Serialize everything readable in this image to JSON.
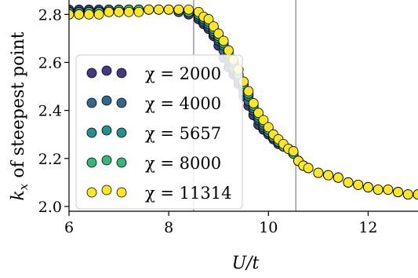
{
  "chart_data": {
    "type": "scatter",
    "xlabel": "U/t",
    "ylabel": "k_x of steepest point",
    "xlim": [
      6,
      13
    ],
    "ylim": [
      1.98,
      2.86
    ],
    "xticks": [
      "6",
      "8",
      "10",
      "12"
    ],
    "yticks": [
      "2.0",
      "2.2",
      "2.4",
      "2.6",
      "2.8"
    ],
    "vlines": [
      8.5,
      10.55
    ],
    "legend_placement": "center-left",
    "grid": false,
    "series": [
      {
        "name": "χ = 2000",
        "color": "#443983",
        "x": [
          6.0,
          6.2,
          6.4,
          6.6,
          6.8,
          7.0,
          7.2,
          7.4,
          7.6,
          7.8,
          8.0,
          8.2,
          8.4,
          8.6,
          8.7,
          8.8,
          8.9,
          9.0,
          9.1,
          9.2,
          9.3,
          9.4,
          9.5,
          9.6,
          9.7,
          9.8,
          9.9,
          10.0,
          10.1,
          10.2,
          10.3,
          10.4,
          10.5,
          10.6,
          10.7,
          10.8,
          11.0,
          11.2,
          11.4,
          11.6,
          11.8,
          12.0,
          12.2,
          12.4,
          12.6,
          12.8,
          13.0
        ],
        "y": [
          2.82,
          2.82,
          2.82,
          2.82,
          2.82,
          2.82,
          2.82,
          2.82,
          2.82,
          2.82,
          2.82,
          2.81,
          2.8,
          2.78,
          2.76,
          2.74,
          2.71,
          2.67,
          2.62,
          2.58,
          2.55,
          2.51,
          2.46,
          2.42,
          2.38,
          2.34,
          2.32,
          2.3,
          2.28,
          2.26,
          2.25,
          2.24,
          2.22,
          2.19,
          2.17,
          2.16,
          2.14,
          2.13,
          2.12,
          2.1,
          2.09,
          2.08,
          2.07,
          2.07,
          2.06,
          2.05,
          2.05
        ]
      },
      {
        "name": "χ = 4000",
        "color": "#31688e",
        "x": [
          6.0,
          6.2,
          6.4,
          6.6,
          6.8,
          7.0,
          7.2,
          7.4,
          7.6,
          7.8,
          8.0,
          8.2,
          8.4,
          8.6,
          8.7,
          8.8,
          8.9,
          9.0,
          9.1,
          9.2,
          9.3,
          9.4,
          9.5,
          9.6,
          9.7,
          9.8,
          9.9,
          10.0,
          10.1,
          10.2,
          10.3,
          10.4,
          10.5,
          10.6,
          10.7,
          10.8,
          11.0,
          11.2,
          11.4,
          11.6,
          11.8,
          12.0,
          12.2,
          12.4,
          12.6,
          12.8,
          13.0
        ],
        "y": [
          2.81,
          2.81,
          2.81,
          2.81,
          2.82,
          2.82,
          2.82,
          2.82,
          2.82,
          2.82,
          2.82,
          2.81,
          2.81,
          2.79,
          2.77,
          2.75,
          2.72,
          2.69,
          2.65,
          2.61,
          2.57,
          2.53,
          2.48,
          2.44,
          2.4,
          2.36,
          2.33,
          2.31,
          2.29,
          2.27,
          2.25,
          2.24,
          2.22,
          2.19,
          2.17,
          2.16,
          2.14,
          2.13,
          2.12,
          2.1,
          2.09,
          2.08,
          2.07,
          2.07,
          2.06,
          2.05,
          2.05
        ]
      },
      {
        "name": "χ = 5657",
        "color": "#21918c",
        "x": [
          6.0,
          6.2,
          6.4,
          6.6,
          6.8,
          7.0,
          7.2,
          7.4,
          7.6,
          7.8,
          8.0,
          8.2,
          8.4,
          8.6,
          8.7,
          8.8,
          8.9,
          9.0,
          9.1,
          9.2,
          9.3,
          9.4,
          9.5,
          9.6,
          9.7,
          9.8,
          9.9,
          10.0,
          10.1,
          10.2,
          10.3,
          10.4,
          10.5,
          10.6,
          10.7,
          10.8,
          11.0,
          11.2,
          11.4,
          11.6,
          11.8,
          12.0,
          12.2,
          12.4,
          12.6,
          12.8,
          13.0
        ],
        "y": [
          2.81,
          2.81,
          2.81,
          2.81,
          2.81,
          2.82,
          2.82,
          2.82,
          2.82,
          2.82,
          2.82,
          2.82,
          2.81,
          2.8,
          2.78,
          2.76,
          2.73,
          2.7,
          2.67,
          2.63,
          2.58,
          2.54,
          2.5,
          2.46,
          2.41,
          2.37,
          2.34,
          2.31,
          2.29,
          2.27,
          2.25,
          2.24,
          2.22,
          2.19,
          2.17,
          2.16,
          2.14,
          2.13,
          2.12,
          2.1,
          2.09,
          2.08,
          2.07,
          2.07,
          2.06,
          2.05,
          2.05
        ]
      },
      {
        "name": "χ = 8000",
        "color": "#35b779",
        "x": [
          6.0,
          6.2,
          6.4,
          6.6,
          6.8,
          7.0,
          7.2,
          7.4,
          7.6,
          7.8,
          8.0,
          8.2,
          8.4,
          8.6,
          8.7,
          8.8,
          8.9,
          9.0,
          9.1,
          9.2,
          9.3,
          9.4,
          9.5,
          9.6,
          9.7,
          9.8,
          9.9,
          10.0,
          10.1,
          10.2,
          10.3,
          10.4,
          10.5,
          10.6,
          10.7,
          10.8,
          11.0,
          11.2,
          11.4,
          11.6,
          11.8,
          12.0,
          12.2,
          12.4,
          12.6,
          12.8,
          13.0
        ],
        "y": [
          2.8,
          2.8,
          2.81,
          2.81,
          2.81,
          2.81,
          2.82,
          2.82,
          2.82,
          2.82,
          2.82,
          2.82,
          2.81,
          2.8,
          2.79,
          2.77,
          2.74,
          2.71,
          2.68,
          2.64,
          2.6,
          2.55,
          2.51,
          2.47,
          2.42,
          2.38,
          2.35,
          2.32,
          2.29,
          2.27,
          2.25,
          2.24,
          2.22,
          2.19,
          2.17,
          2.16,
          2.14,
          2.13,
          2.12,
          2.1,
          2.09,
          2.08,
          2.07,
          2.07,
          2.06,
          2.05,
          2.05
        ]
      },
      {
        "name": "χ = 11314",
        "color": "#fde725",
        "x": [
          6.0,
          6.2,
          6.4,
          6.6,
          6.8,
          7.0,
          7.2,
          7.4,
          7.6,
          7.8,
          8.0,
          8.2,
          8.4,
          8.6,
          8.7,
          8.8,
          8.9,
          9.0,
          9.1,
          9.2,
          9.3,
          9.4,
          9.5,
          9.6,
          9.7,
          9.8,
          9.9,
          10.0,
          10.1,
          10.2,
          10.3,
          10.4,
          10.5,
          10.6,
          10.7,
          10.8,
          11.0,
          11.2,
          11.4,
          11.6,
          11.8,
          12.0,
          12.2,
          12.4,
          12.6,
          12.8,
          13.0
        ],
        "y": [
          2.8,
          2.8,
          2.8,
          2.8,
          2.81,
          2.81,
          2.81,
          2.81,
          2.82,
          2.82,
          2.82,
          2.82,
          2.82,
          2.81,
          2.79,
          2.78,
          2.75,
          2.72,
          2.69,
          2.65,
          2.61,
          2.57,
          2.52,
          2.48,
          2.43,
          2.39,
          2.36,
          2.33,
          2.3,
          2.28,
          2.26,
          2.24,
          2.23,
          2.19,
          2.17,
          2.16,
          2.14,
          2.13,
          2.12,
          2.1,
          2.09,
          2.08,
          2.07,
          2.07,
          2.06,
          2.05,
          2.05
        ]
      }
    ]
  }
}
